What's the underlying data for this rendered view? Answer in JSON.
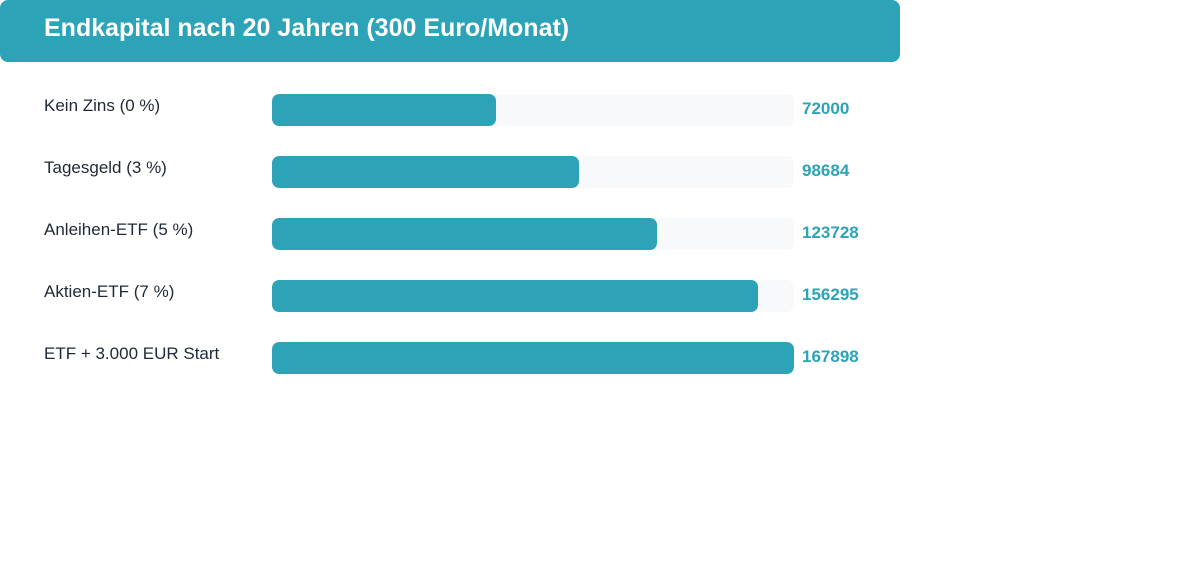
{
  "chart_data": {
    "type": "bar",
    "orientation": "horizontal",
    "title": "Endkapital nach 20 Jahren (300 Euro/Monat)",
    "categories": [
      "Kein Zins (0 %)",
      "Tagesgeld (3 %)",
      "Anleihen-ETF (5 %)",
      "Aktien-ETF (7 %)",
      "ETF + 3.000 EUR Start"
    ],
    "values": [
      72000,
      98684,
      123728,
      156295,
      167898
    ],
    "xlim": [
      0,
      167898
    ],
    "grid": false,
    "colors": {
      "bar": "#2ca3b6",
      "track": "#f8f9fb",
      "header": "#2ca3b6",
      "value_text": "#2ca3b6"
    }
  }
}
